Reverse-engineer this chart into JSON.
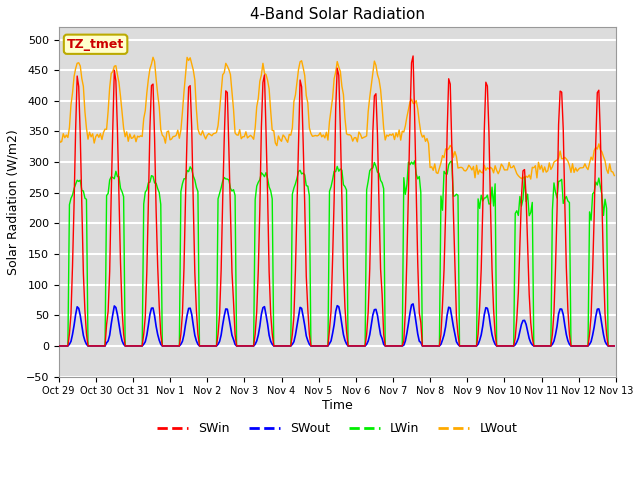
{
  "title": "4-Band Solar Radiation",
  "ylabel": "Solar Radiation (W/m2)",
  "xlabel": "Time",
  "ylim": [
    -50,
    520
  ],
  "background_color": "#dcdcdc",
  "plot_bg_color": "#dcdcdc",
  "grid_color": "#ffffff",
  "colors": {
    "SWin": "#ff0000",
    "SWout": "#0000ff",
    "LWin": "#00ee00",
    "LWout": "#ffaa00"
  },
  "label_box": "TZ_tmet",
  "tick_labels": [
    "Oct 29",
    "Oct 30",
    "Oct 31",
    "Nov 1",
    "Nov 2",
    "Nov 3",
    "Nov 4",
    "Nov 5",
    "Nov 6",
    "Nov 7",
    "Nov 8",
    "Nov 9",
    "Nov 10",
    "Nov 11",
    "Nov 12",
    "Nov 13"
  ],
  "tick_positions": [
    0,
    24,
    48,
    72,
    96,
    120,
    144,
    168,
    192,
    216,
    240,
    264,
    288,
    312,
    336,
    360
  ]
}
